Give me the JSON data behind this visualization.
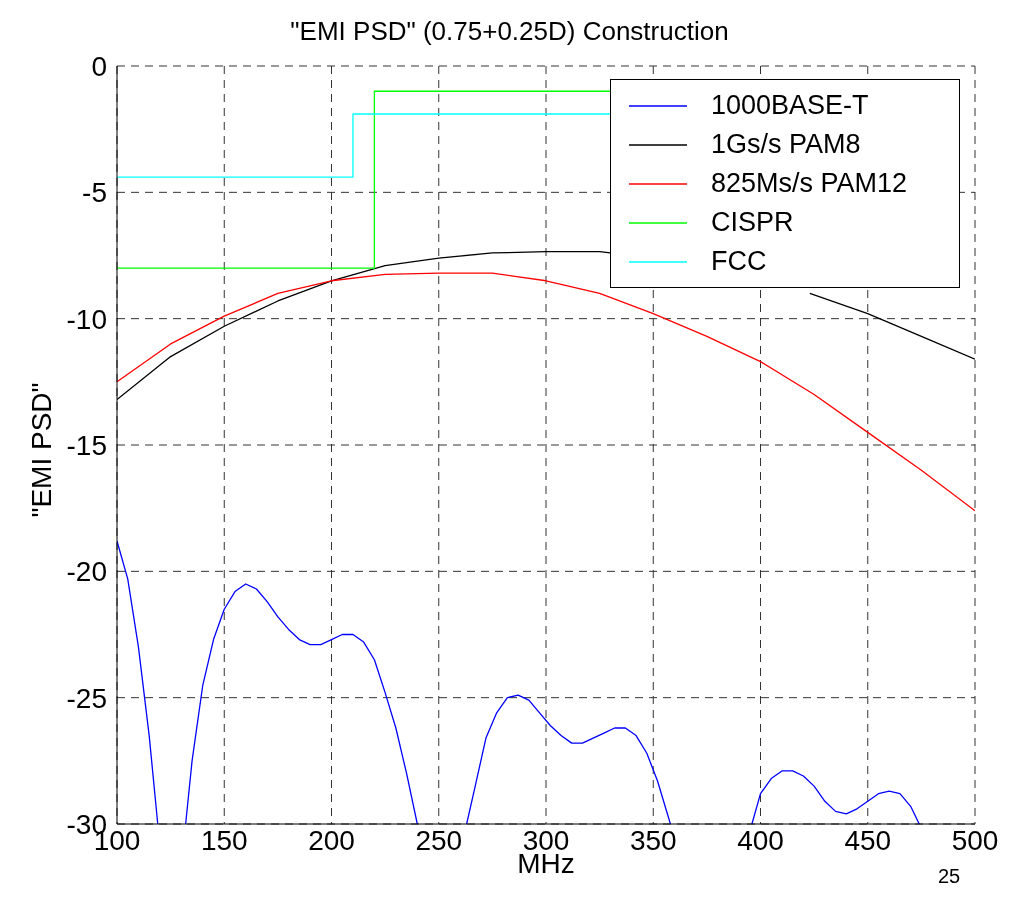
{
  "chart_data": {
    "type": "line",
    "title": "\"EMI PSD\" (0.75+0.25D) Construction",
    "xlabel": "MHz",
    "ylabel": "\"EMI PSD\"",
    "xlim": [
      100,
      500
    ],
    "xticks": [
      100,
      150,
      200,
      250,
      300,
      350,
      400,
      450,
      500
    ],
    "ylim": [
      -30,
      0
    ],
    "yticks": [
      -30,
      -25,
      -20,
      -15,
      -10,
      -5,
      0
    ],
    "grid": true,
    "legend": "top right",
    "annotations": [
      "25"
    ],
    "series": [
      {
        "name": "1000BASE-T",
        "color": "#0000ff",
        "x": [
          100,
          105,
          110,
          115,
          119,
          125,
          132,
          135,
          140,
          145,
          150,
          155,
          160,
          165,
          170,
          175,
          180,
          185,
          190,
          195,
          200,
          205,
          210,
          215,
          220,
          225,
          230,
          235,
          240,
          250,
          263,
          267,
          272,
          277,
          282,
          287,
          292,
          297,
          302,
          307,
          312,
          317,
          322,
          327,
          332,
          337,
          342,
          347,
          352,
          358,
          375,
          396,
          400,
          405,
          410,
          415,
          420,
          425,
          430,
          435,
          440,
          445,
          450,
          455,
          460,
          465,
          470,
          474
        ],
        "values": [
          -18.8,
          -20.3,
          -23,
          -26.5,
          -30,
          null,
          -30,
          -27.5,
          -24.5,
          -22.7,
          -21.5,
          -20.8,
          -20.5,
          -20.7,
          -21.2,
          -21.8,
          -22.3,
          -22.7,
          -22.9,
          -22.9,
          -22.7,
          -22.5,
          -22.5,
          -22.8,
          -23.5,
          -24.8,
          -26.2,
          -28,
          -30,
          null,
          -30,
          -28.5,
          -26.6,
          -25.6,
          -25,
          -24.9,
          -25.1,
          -25.6,
          -26.1,
          -26.5,
          -26.8,
          -26.8,
          -26.6,
          -26.4,
          -26.2,
          -26.2,
          -26.5,
          -27.2,
          -28.3,
          -30,
          null,
          -30,
          -28.8,
          -28.2,
          -27.9,
          -27.9,
          -28.1,
          -28.5,
          -29.1,
          -29.5,
          -29.6,
          -29.4,
          -29.1,
          -28.8,
          -28.7,
          -28.8,
          -29.3,
          -30
        ]
      },
      {
        "name": "1Gs/s PAM8",
        "color": "#000000",
        "x": [
          100,
          125,
          150,
          175,
          200,
          225,
          250,
          275,
          300,
          325,
          330,
          375,
          423,
          450,
          475,
          500
        ],
        "values": [
          -13.2,
          -11.5,
          -10.3,
          -9.3,
          -8.5,
          -7.9,
          -7.6,
          -7.4,
          -7.35,
          -7.35,
          -7.4,
          null,
          -9,
          -9.8,
          -10.7,
          -11.6
        ]
      },
      {
        "name": "825Ms/s PAM12",
        "color": "#ff0000",
        "x": [
          100,
          125,
          150,
          175,
          200,
          225,
          250,
          275,
          300,
          325,
          350,
          375,
          400,
          425,
          450,
          475,
          500
        ],
        "values": [
          -12.5,
          -11,
          -9.9,
          -9,
          -8.5,
          -8.25,
          -8.2,
          -8.2,
          -8.5,
          -9,
          -9.8,
          -10.7,
          -11.7,
          -13,
          -14.5,
          -16,
          -17.6
        ]
      },
      {
        "name": "CISPR",
        "color": "#00ff00",
        "x": [
          100,
          220,
          220,
          330
        ],
        "values": [
          -8,
          -8,
          -1,
          -1
        ]
      },
      {
        "name": "FCC",
        "color": "#00ffff",
        "x": [
          100,
          210,
          210,
          330
        ],
        "values": [
          -4.4,
          -4.4,
          -1.9,
          -1.9
        ]
      }
    ]
  }
}
